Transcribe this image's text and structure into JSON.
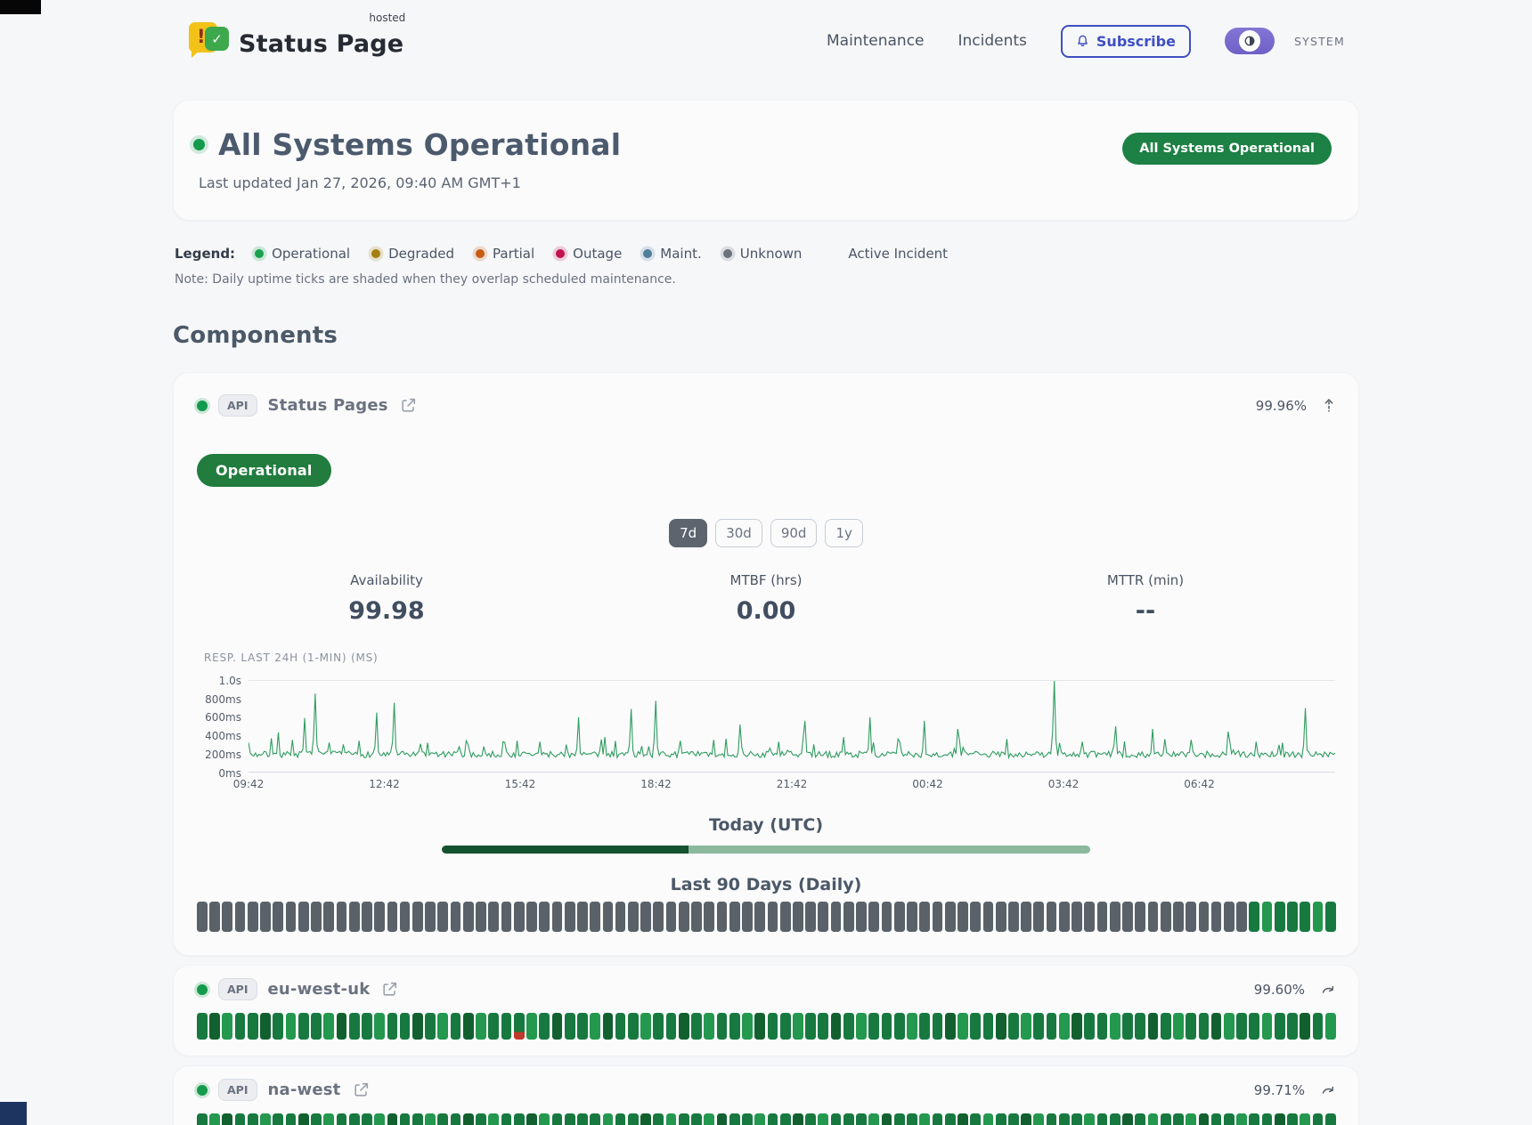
{
  "header": {
    "brand": "Status Page",
    "brand_tag": "hosted",
    "nav": [
      "Maintenance",
      "Incidents"
    ],
    "subscribe_label": "Subscribe",
    "system_label": "SYSTEM"
  },
  "hero": {
    "title": "All Systems Operational",
    "updated": "Last updated Jan 27, 2026, 09:40 AM GMT+1",
    "badge": "All Systems Operational",
    "badge_color": "#1d8044"
  },
  "legend": {
    "title": "Legend:",
    "items": [
      {
        "label": "Operational",
        "color": "#18a24e"
      },
      {
        "label": "Degraded",
        "color": "#a3800f"
      },
      {
        "label": "Partial",
        "color": "#c75b12"
      },
      {
        "label": "Outage",
        "color": "#c2134e"
      },
      {
        "label": "Maint.",
        "color": "#527d9b"
      },
      {
        "label": "Unknown",
        "color": "#6a727c"
      }
    ],
    "active_incident_label": "Active Incident",
    "note": "Note: Daily uptime ticks are shaded when they overlap scheduled maintenance."
  },
  "components_title": "Components",
  "uptime_colors": {
    "u": "#5a6169",
    "o": "#17793f",
    "d": "#12602f",
    "O": "#23984e",
    "p_top": "#17793f",
    "p_bottom": "#c0392b"
  },
  "components": [
    {
      "name": "Status Pages",
      "type": "API",
      "uptime": "99.96%",
      "status_badge": "Operational",
      "ranges": [
        "7d",
        "30d",
        "90d",
        "1y"
      ],
      "selected_range": "7d",
      "stats": [
        {
          "label": "Availability",
          "value": "99.98"
        },
        {
          "label": "MTBF (hrs)",
          "value": "0.00"
        },
        {
          "label": "MTTR (min)",
          "value": "--"
        }
      ],
      "today_label": "Today (UTC)",
      "today_pct": 38,
      "ninety_label": "Last 90 Days (Daily)",
      "ninety_day": "uuuuuuuuuuuuuuuuuuuuuuuuuuuuuuuuuuuuuuuuuuuuuuuuuuuuuuuuuuuuuuuuuuuuuuuuuuuuuuuuuuuoOoooOo"
    },
    {
      "name": "eu-west-uk",
      "type": "API",
      "uptime": "99.60%",
      "ninety_day": "odOoodoOooOdooOoodoOodOoopOodooOdooOoodoOooOdooOoodoOoooOoodOoodoOooOdooOoodoOoodOooOoodoO"
    },
    {
      "name": "na-west",
      "type": "API",
      "uptime": "99.71%",
      "ninety_day": "oOdooOoodoOoooOdooOoodoOoodOooopOoodoOooOdooOoodoOoooOdooOoodoOoodOoooOoodoOooOdooOoodoOoo"
    }
  ],
  "chart_data": {
    "type": "line",
    "title": "RESP. LAST 24H (1-MIN) (MS)",
    "y_ticks": [
      "1.0s",
      "800ms",
      "600ms",
      "400ms",
      "200ms",
      "0ms"
    ],
    "ylim": [
      0,
      1000
    ],
    "x_ticks": [
      "09:42",
      "12:42",
      "15:42",
      "18:42",
      "21:42",
      "00:42",
      "03:42",
      "06:42"
    ],
    "baseline_ms": 190,
    "noise_ms": 70,
    "line_color": "#2f9c5f",
    "grid_color": "#e3e6ea",
    "spikes": [
      [
        0.028,
        430
      ],
      [
        0.04,
        350
      ],
      [
        0.051,
        590
      ],
      [
        0.061,
        860
      ],
      [
        0.088,
        300
      ],
      [
        0.102,
        340
      ],
      [
        0.118,
        650
      ],
      [
        0.134,
        760
      ],
      [
        0.165,
        320
      ],
      [
        0.2,
        340
      ],
      [
        0.235,
        330
      ],
      [
        0.268,
        330
      ],
      [
        0.303,
        600
      ],
      [
        0.328,
        380
      ],
      [
        0.352,
        690
      ],
      [
        0.374,
        780
      ],
      [
        0.398,
        340
      ],
      [
        0.428,
        350
      ],
      [
        0.452,
        520
      ],
      [
        0.488,
        330
      ],
      [
        0.512,
        560
      ],
      [
        0.548,
        380
      ],
      [
        0.572,
        600
      ],
      [
        0.598,
        360
      ],
      [
        0.622,
        560
      ],
      [
        0.652,
        470
      ],
      [
        0.698,
        360
      ],
      [
        0.742,
        1000
      ],
      [
        0.768,
        330
      ],
      [
        0.798,
        500
      ],
      [
        0.832,
        470
      ],
      [
        0.868,
        350
      ],
      [
        0.902,
        440
      ],
      [
        0.928,
        330
      ],
      [
        0.952,
        320
      ],
      [
        0.972,
        700
      ]
    ]
  }
}
